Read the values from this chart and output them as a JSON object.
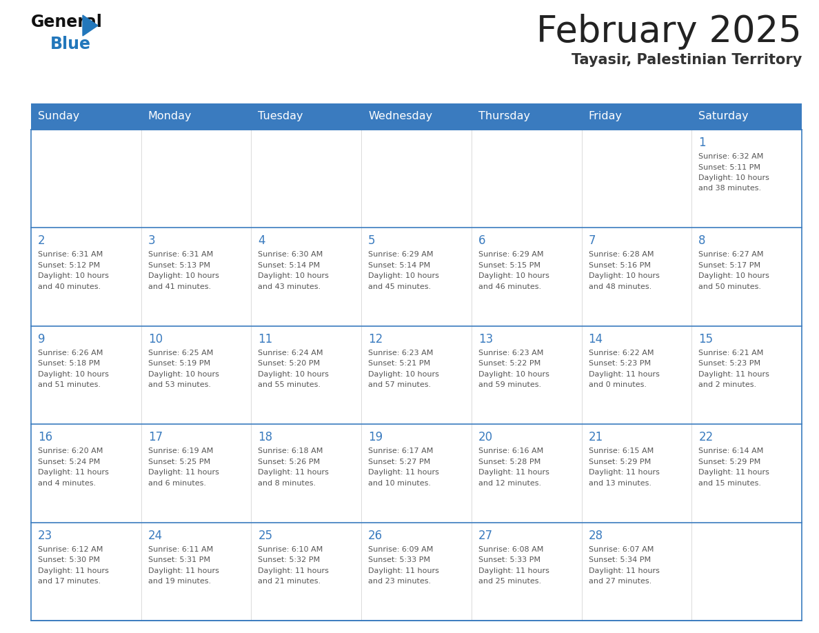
{
  "title": "February 2025",
  "subtitle": "Tayasir, Palestinian Territory",
  "header_bg": "#3a7bbf",
  "header_text": "#ffffff",
  "day_names": [
    "Sunday",
    "Monday",
    "Tuesday",
    "Wednesday",
    "Thursday",
    "Friday",
    "Saturday"
  ],
  "cell_border_color": "#3a7bbf",
  "day_num_color": "#3a7bbf",
  "info_color": "#555555",
  "title_color": "#222222",
  "subtitle_color": "#333333",
  "logo_black": "#111111",
  "logo_blue": "#2277bb",
  "tri_color": "#2277bb",
  "cell_bg": "#ffffff",
  "calendar": [
    [
      null,
      null,
      null,
      null,
      null,
      null,
      {
        "day": 1,
        "sunrise": "6:32 AM",
        "sunset": "5:11 PM",
        "daylight": "10 hours and 38 minutes."
      }
    ],
    [
      {
        "day": 2,
        "sunrise": "6:31 AM",
        "sunset": "5:12 PM",
        "daylight": "10 hours and 40 minutes."
      },
      {
        "day": 3,
        "sunrise": "6:31 AM",
        "sunset": "5:13 PM",
        "daylight": "10 hours and 41 minutes."
      },
      {
        "day": 4,
        "sunrise": "6:30 AM",
        "sunset": "5:14 PM",
        "daylight": "10 hours and 43 minutes."
      },
      {
        "day": 5,
        "sunrise": "6:29 AM",
        "sunset": "5:14 PM",
        "daylight": "10 hours and 45 minutes."
      },
      {
        "day": 6,
        "sunrise": "6:29 AM",
        "sunset": "5:15 PM",
        "daylight": "10 hours and 46 minutes."
      },
      {
        "day": 7,
        "sunrise": "6:28 AM",
        "sunset": "5:16 PM",
        "daylight": "10 hours and 48 minutes."
      },
      {
        "day": 8,
        "sunrise": "6:27 AM",
        "sunset": "5:17 PM",
        "daylight": "10 hours and 50 minutes."
      }
    ],
    [
      {
        "day": 9,
        "sunrise": "6:26 AM",
        "sunset": "5:18 PM",
        "daylight": "10 hours and 51 minutes."
      },
      {
        "day": 10,
        "sunrise": "6:25 AM",
        "sunset": "5:19 PM",
        "daylight": "10 hours and 53 minutes."
      },
      {
        "day": 11,
        "sunrise": "6:24 AM",
        "sunset": "5:20 PM",
        "daylight": "10 hours and 55 minutes."
      },
      {
        "day": 12,
        "sunrise": "6:23 AM",
        "sunset": "5:21 PM",
        "daylight": "10 hours and 57 minutes."
      },
      {
        "day": 13,
        "sunrise": "6:23 AM",
        "sunset": "5:22 PM",
        "daylight": "10 hours and 59 minutes."
      },
      {
        "day": 14,
        "sunrise": "6:22 AM",
        "sunset": "5:23 PM",
        "daylight": "11 hours and 0 minutes."
      },
      {
        "day": 15,
        "sunrise": "6:21 AM",
        "sunset": "5:23 PM",
        "daylight": "11 hours and 2 minutes."
      }
    ],
    [
      {
        "day": 16,
        "sunrise": "6:20 AM",
        "sunset": "5:24 PM",
        "daylight": "11 hours and 4 minutes."
      },
      {
        "day": 17,
        "sunrise": "6:19 AM",
        "sunset": "5:25 PM",
        "daylight": "11 hours and 6 minutes."
      },
      {
        "day": 18,
        "sunrise": "6:18 AM",
        "sunset": "5:26 PM",
        "daylight": "11 hours and 8 minutes."
      },
      {
        "day": 19,
        "sunrise": "6:17 AM",
        "sunset": "5:27 PM",
        "daylight": "11 hours and 10 minutes."
      },
      {
        "day": 20,
        "sunrise": "6:16 AM",
        "sunset": "5:28 PM",
        "daylight": "11 hours and 12 minutes."
      },
      {
        "day": 21,
        "sunrise": "6:15 AM",
        "sunset": "5:29 PM",
        "daylight": "11 hours and 13 minutes."
      },
      {
        "day": 22,
        "sunrise": "6:14 AM",
        "sunset": "5:29 PM",
        "daylight": "11 hours and 15 minutes."
      }
    ],
    [
      {
        "day": 23,
        "sunrise": "6:12 AM",
        "sunset": "5:30 PM",
        "daylight": "11 hours and 17 minutes."
      },
      {
        "day": 24,
        "sunrise": "6:11 AM",
        "sunset": "5:31 PM",
        "daylight": "11 hours and 19 minutes."
      },
      {
        "day": 25,
        "sunrise": "6:10 AM",
        "sunset": "5:32 PM",
        "daylight": "11 hours and 21 minutes."
      },
      {
        "day": 26,
        "sunrise": "6:09 AM",
        "sunset": "5:33 PM",
        "daylight": "11 hours and 23 minutes."
      },
      {
        "day": 27,
        "sunrise": "6:08 AM",
        "sunset": "5:33 PM",
        "daylight": "11 hours and 25 minutes."
      },
      {
        "day": 28,
        "sunrise": "6:07 AM",
        "sunset": "5:34 PM",
        "daylight": "11 hours and 27 minutes."
      },
      null
    ]
  ]
}
